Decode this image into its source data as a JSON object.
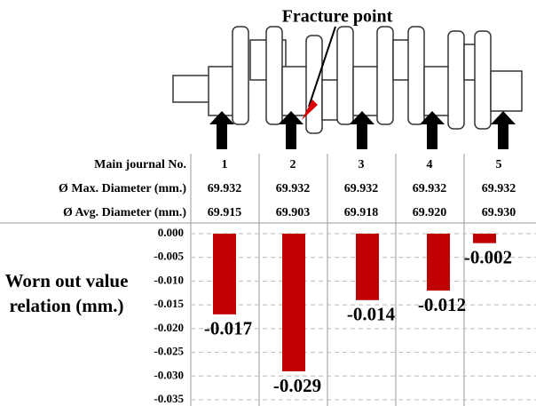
{
  "figure": {
    "annotation": "Fracture point"
  },
  "table": {
    "rows": [
      [
        "Main journal No.",
        "1",
        "2",
        "3",
        "4",
        "5"
      ],
      [
        "Ø Max. Diameter (mm.)",
        "69.932",
        "69.932",
        "69.932",
        "69.932",
        "69.932"
      ],
      [
        "Ø Avg. Diameter (mm.)",
        "69.915",
        "69.903",
        "69.918",
        "69.920",
        "69.930"
      ]
    ]
  },
  "chart_data": {
    "type": "bar",
    "y_label": "Worn out value relation (mm.)",
    "values": [
      -0.017,
      -0.029,
      -0.014,
      -0.012,
      -0.002
    ],
    "color": "#c00000",
    "ylim": [
      -0.035,
      0
    ],
    "yticks": [
      {
        "value": 0,
        "label": "0.000"
      },
      -0.005,
      {
        "value": -0.01,
        "label": "-0.010"
      },
      -0.015,
      {
        "value": -0.02,
        "label": "-0.020"
      },
      -0.025,
      {
        "value": -0.03,
        "label": "-0.030"
      },
      -0.035
    ],
    "grid": true
  }
}
